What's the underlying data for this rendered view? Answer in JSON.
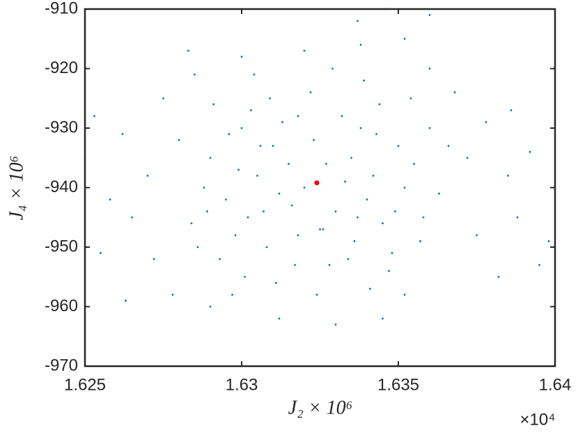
{
  "chart_data": {
    "type": "scatter",
    "x_label": "J₂ × 10⁶",
    "y_label": "J₄ × 10⁶",
    "x_exponent": "×10⁴",
    "xlim": [
      1.625,
      1.64
    ],
    "xticks": [
      1.625,
      1.63,
      1.635,
      1.64
    ],
    "ylim": [
      -970,
      -910
    ],
    "yticks": [
      -970,
      -960,
      -950,
      -940,
      -930,
      -920,
      -910
    ],
    "series": [
      {
        "color": "#0072bd",
        "x": [
          1.629,
          1.6295,
          1.63,
          1.6302,
          1.6305,
          1.6308,
          1.631,
          1.6298,
          1.6303,
          1.6312,
          1.6288,
          1.6293,
          1.6307,
          1.6315,
          1.6296,
          1.6301,
          1.6284,
          1.628,
          1.6318,
          1.6309,
          1.6335,
          1.634,
          1.6338,
          1.6345,
          1.6342,
          1.6348,
          1.6332,
          1.635,
          1.6336,
          1.6344,
          1.6352,
          1.633,
          1.6355,
          1.6347,
          1.6339,
          1.6358,
          1.6333,
          1.6341,
          1.636,
          1.6326,
          1.632,
          1.6323,
          1.6325,
          1.6318,
          1.6328,
          1.6322,
          1.6327,
          1.6316,
          1.627,
          1.6265,
          1.6262,
          1.6275,
          1.6272,
          1.6258,
          1.6253,
          1.6255,
          1.6278,
          1.6285,
          1.629,
          1.63,
          1.6312,
          1.632,
          1.633,
          1.6338,
          1.6345,
          1.6352,
          1.636,
          1.6368,
          1.6372,
          1.6375,
          1.6378,
          1.6382,
          1.6385,
          1.6388,
          1.6392,
          1.6395,
          1.6346,
          1.636,
          1.6337,
          1.625,
          1.6263,
          1.6386,
          1.6398,
          1.6352,
          1.6283,
          1.6291,
          1.6297,
          1.6304,
          1.6311,
          1.6313,
          1.6289,
          1.6286,
          1.6299,
          1.6306,
          1.6334,
          1.6343,
          1.6349,
          1.6337,
          1.6354,
          1.6357,
          1.6363,
          1.6366,
          1.6329,
          1.6324,
          1.6317
        ],
        "values": [
          -935,
          -942,
          -930,
          -945,
          -938,
          -950,
          -933,
          -948,
          -927,
          -941,
          -940,
          -952,
          -944,
          -936,
          -931,
          -955,
          -946,
          -932,
          -948,
          -925,
          -935,
          -942,
          -930,
          -946,
          -938,
          -951,
          -928,
          -933,
          -949,
          -926,
          -940,
          -944,
          -936,
          -954,
          -922,
          -945,
          -939,
          -957,
          -930,
          -947,
          -940,
          -932,
          -947,
          -928,
          -953,
          -924,
          -936,
          -943,
          -938,
          -945,
          -931,
          -925,
          -952,
          -942,
          -928,
          -951,
          -958,
          -921,
          -960,
          -918,
          -962,
          -917,
          -963,
          -916,
          -962,
          -958,
          -920,
          -924,
          -935,
          -948,
          -929,
          -955,
          -938,
          -945,
          -934,
          -953,
          -910,
          -911,
          -912,
          -935,
          -959,
          -927,
          -949,
          -915,
          -917,
          -926,
          -958,
          -921,
          -956,
          -929,
          -944,
          -950,
          -937,
          -933,
          -952,
          -931,
          -944,
          -945,
          -925,
          -949,
          -941,
          -933,
          -920,
          -958,
          -953
        ]
      },
      {
        "color": "#ff0000",
        "x": [
          1.6324
        ],
        "values": [
          -939.2
        ]
      }
    ]
  }
}
